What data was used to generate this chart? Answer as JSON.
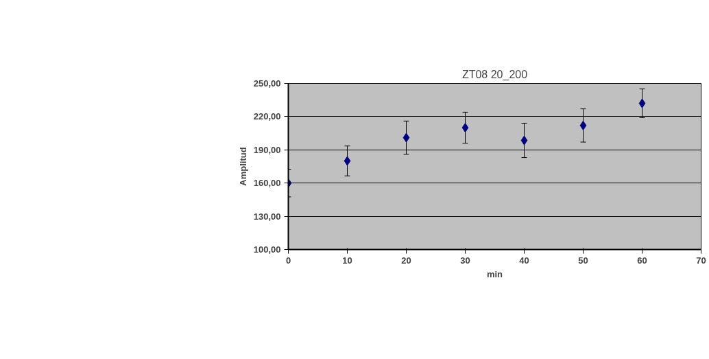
{
  "chart_data": {
    "type": "scatter",
    "xlabel": "min",
    "ylabel": "Amplitud",
    "annotations": [
      "ZT08 20_200"
    ],
    "x": [
      0,
      10,
      20,
      30,
      40,
      50,
      60
    ],
    "series": [
      {
        "color": "#000080",
        "values": [
          160,
          180,
          201,
          210,
          198.5,
          212,
          232
        ],
        "errors": [
          12.5,
          13.5,
          15,
          14,
          15.5,
          15,
          13
        ]
      }
    ],
    "xlim": [
      0,
      70
    ],
    "xticks": [
      0,
      10,
      20,
      30,
      40,
      50,
      60,
      70
    ],
    "ylim": [
      100,
      250
    ],
    "yticks": [
      {
        "value": 100,
        "label": "100,00"
      },
      {
        "value": 130,
        "label": "130,00"
      },
      {
        "value": 160,
        "label": "160,00"
      },
      {
        "value": 190,
        "label": "190,00"
      },
      {
        "value": 220,
        "label": "220,00"
      },
      {
        "value": 250,
        "label": "250,00"
      }
    ],
    "grid": "y",
    "marker": "diamond"
  }
}
